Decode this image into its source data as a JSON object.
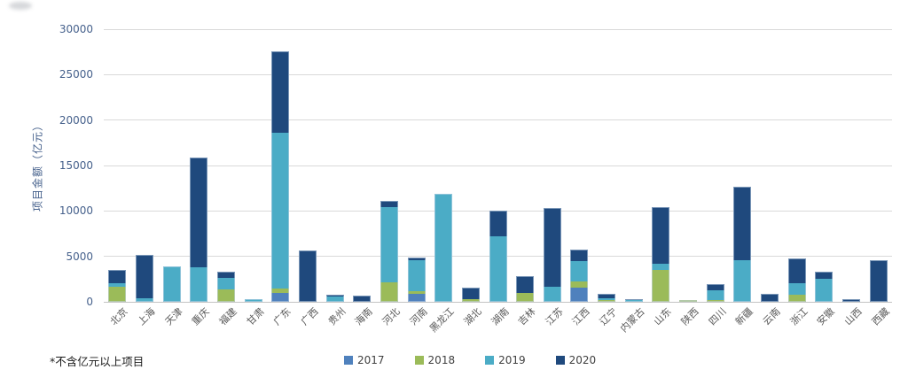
{
  "footnote": "*不含亿元以上项目",
  "accent_colors": {
    "y2017": "#4F81BD",
    "y2018": "#9BBB59",
    "y2019": "#4BACC6",
    "y2020": "#1F497D",
    "gridline": "#d9d9d9",
    "axis_text": "#46618c"
  },
  "chart_data": {
    "type": "bar",
    "stacked": true,
    "title": "",
    "xlabel": "",
    "ylabel": "项目金额（亿元）",
    "ylim": [
      0,
      30000
    ],
    "yticks": [
      0,
      5000,
      10000,
      15000,
      20000,
      25000,
      30000
    ],
    "grid": true,
    "legend_position": "bottom",
    "categories": [
      "北京",
      "上海",
      "天津",
      "重庆",
      "福建",
      "甘肃",
      "广东",
      "广西",
      "贵州",
      "海南",
      "河北",
      "河南",
      "黑龙江",
      "湖北",
      "湖南",
      "吉林",
      "江苏",
      "江西",
      "辽宁",
      "内蒙古",
      "山东",
      "陕西",
      "四川",
      "新疆",
      "云南",
      "浙江",
      "安徽",
      "山西",
      "西藏"
    ],
    "series": [
      {
        "name": "2017",
        "color": "#4F81BD",
        "values": [
          0,
          0,
          0,
          0,
          0,
          0,
          1000,
          0,
          0,
          0,
          0,
          900,
          0,
          0,
          0,
          0,
          0,
          1550,
          0,
          0,
          0,
          0,
          0,
          0,
          0,
          0,
          0,
          0,
          0
        ]
      },
      {
        "name": "2018",
        "color": "#9BBB59",
        "values": [
          1650,
          0,
          0,
          0,
          1350,
          0,
          500,
          0,
          0,
          0,
          2150,
          250,
          0,
          300,
          0,
          950,
          0,
          700,
          150,
          0,
          3500,
          200,
          150,
          0,
          0,
          800,
          0,
          0,
          0
        ]
      },
      {
        "name": "2019",
        "color": "#4BACC6",
        "values": [
          400,
          400,
          3900,
          3800,
          1250,
          300,
          17100,
          0,
          600,
          0,
          8250,
          3450,
          11900,
          0,
          7250,
          0,
          1700,
          2200,
          200,
          150,
          700,
          0,
          1150,
          4600,
          0,
          1200,
          2550,
          0,
          0
        ]
      },
      {
        "name": "2020",
        "color": "#1F497D",
        "values": [
          1450,
          4800,
          0,
          12100,
          750,
          0,
          9000,
          5650,
          200,
          650,
          700,
          300,
          0,
          1300,
          2800,
          1850,
          8600,
          1300,
          550,
          150,
          6200,
          0,
          700,
          8100,
          900,
          2750,
          750,
          300,
          4550
        ]
      }
    ]
  }
}
